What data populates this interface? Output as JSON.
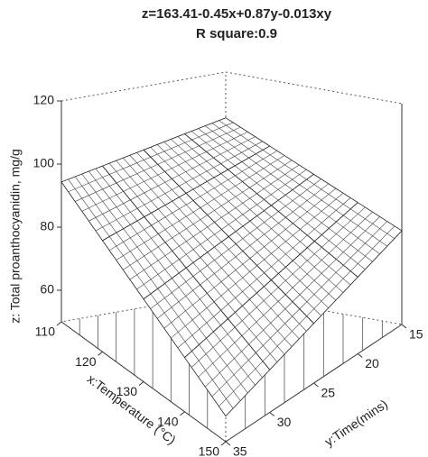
{
  "chart_data": {
    "type": "surface",
    "title": "z=163.41-0.45x+0.87y-0.013xy",
    "subtitle": "R square:0.9",
    "xlabel": "x:Temperature (°C)",
    "ylabel": "y:Time(mins)",
    "zlabel": "z: Total proanthocyanidin, mg/g",
    "x": [
      110,
      120,
      130,
      140,
      150
    ],
    "y": [
      15,
      20,
      25,
      30,
      35
    ],
    "z": [
      [
        105.51,
        102.71,
        99.91,
        97.11,
        94.31
      ],
      [
        99.06,
        95.61,
        92.16,
        88.71,
        85.26
      ],
      [
        92.61,
        88.51,
        84.41,
        80.31,
        76.21
      ],
      [
        86.16,
        81.41,
        76.66,
        71.91,
        67.16
      ],
      [
        79.71,
        74.31,
        68.91,
        63.51,
        58.11
      ]
    ],
    "xlim": [
      110,
      150
    ],
    "ylim": [
      15,
      35
    ],
    "zlim": [
      50,
      120
    ],
    "xticks": [
      110,
      120,
      130,
      140,
      150
    ],
    "yticks": [
      15,
      20,
      25,
      30,
      35
    ],
    "zticks": [
      60,
      80,
      100,
      120
    ],
    "color": "#ffffff"
  }
}
